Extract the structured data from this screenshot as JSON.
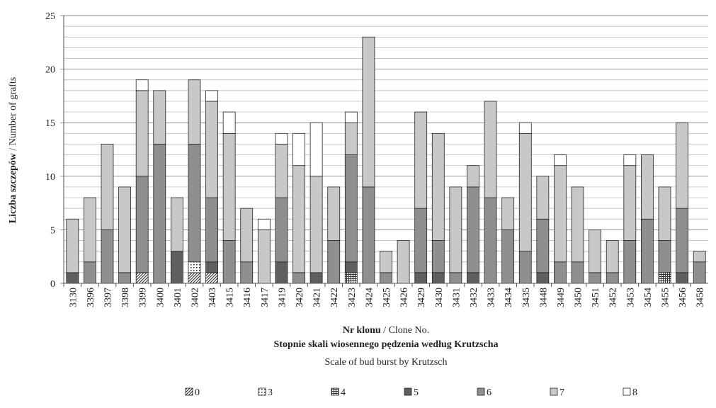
{
  "chart_data": {
    "type": "stacked_bar",
    "y_label_bold": "Liczba szczepów",
    "y_label_rest": "/ Number of grafts",
    "x_label_bold": "Nr klonu",
    "x_label_rest": "/ Clone No.",
    "legend_title_bold": "Stopnie skali wiosennego pędzenia według Krutzscha",
    "legend_title": "Scale of bud burst by Krutzsch",
    "categories": [
      "3130",
      "3396",
      "3397",
      "3398",
      "3399",
      "3400",
      "3401",
      "3402",
      "3403",
      "3415",
      "3416",
      "3417",
      "3419",
      "3420",
      "3421",
      "3422",
      "3423",
      "3424",
      "3425",
      "3426",
      "3429",
      "3430",
      "3431",
      "3432",
      "3433",
      "3434",
      "3435",
      "3448",
      "3449",
      "3450",
      "3451",
      "3452",
      "3453",
      "3454",
      "3455",
      "3456",
      "3458"
    ],
    "series": [
      {
        "name": "0",
        "color": "#ffffff",
        "pattern": "diagonal",
        "values": [
          0,
          0,
          0,
          0,
          1,
          0,
          0,
          1,
          1,
          0,
          0,
          0,
          0,
          0,
          0,
          0,
          0,
          0,
          0,
          0,
          0,
          0,
          0,
          0,
          0,
          0,
          0,
          0,
          0,
          0,
          0,
          0,
          0,
          0,
          0,
          0,
          0
        ]
      },
      {
        "name": "3",
        "color": "#ffffff",
        "pattern": "dots",
        "values": [
          0,
          0,
          0,
          0,
          0,
          0,
          0,
          1,
          0,
          0,
          0,
          0,
          0,
          0,
          0,
          0,
          0,
          0,
          0,
          0,
          0,
          0,
          0,
          0,
          0,
          0,
          0,
          0,
          0,
          0,
          0,
          0,
          0,
          0,
          0,
          0,
          0
        ]
      },
      {
        "name": "4",
        "color": "#ffffff",
        "pattern": "grid",
        "values": [
          0,
          0,
          0,
          0,
          0,
          0,
          0,
          0,
          0,
          0,
          0,
          0,
          0,
          0,
          0,
          0,
          1,
          0,
          0,
          0,
          0,
          0,
          0,
          0,
          0,
          0,
          0,
          0,
          0,
          0,
          0,
          0,
          0,
          0,
          1,
          0,
          0
        ]
      },
      {
        "name": "5",
        "color": "#5f5f5f",
        "pattern": "solid",
        "values": [
          1,
          0,
          0,
          0,
          0,
          0,
          3,
          0,
          1,
          0,
          0,
          0,
          2,
          0,
          1,
          0,
          1,
          0,
          0,
          0,
          1,
          1,
          0,
          1,
          0,
          0,
          0,
          1,
          0,
          0,
          0,
          0,
          0,
          0,
          0,
          1,
          0
        ]
      },
      {
        "name": "6",
        "color": "#8f8f8f",
        "pattern": "solid",
        "values": [
          0,
          2,
          5,
          1,
          9,
          13,
          0,
          11,
          6,
          4,
          2,
          0,
          6,
          1,
          0,
          4,
          10,
          9,
          1,
          0,
          6,
          3,
          1,
          8,
          8,
          5,
          3,
          5,
          2,
          2,
          1,
          1,
          4,
          6,
          3,
          6,
          2
        ]
      },
      {
        "name": "7",
        "color": "#c8c8c8",
        "pattern": "solid",
        "values": [
          5,
          6,
          8,
          8,
          8,
          5,
          5,
          6,
          9,
          10,
          5,
          5,
          5,
          10,
          9,
          5,
          3,
          14,
          2,
          4,
          9,
          10,
          8,
          2,
          9,
          3,
          11,
          4,
          9,
          7,
          4,
          3,
          7,
          6,
          5,
          8,
          1
        ]
      },
      {
        "name": "8",
        "color": "#ffffff",
        "pattern": "solid",
        "values": [
          0,
          0,
          0,
          0,
          1,
          0,
          0,
          0,
          1,
          2,
          0,
          1,
          1,
          3,
          5,
          0,
          1,
          0,
          0,
          0,
          0,
          0,
          0,
          0,
          0,
          0,
          1,
          0,
          1,
          0,
          0,
          0,
          1,
          0,
          0,
          0,
          0
        ]
      }
    ],
    "ylim": [
      0,
      25
    ],
    "yticks": [
      0,
      5,
      10,
      15,
      20,
      25
    ],
    "yminor": [
      1,
      2,
      3,
      4,
      6,
      7,
      8,
      9,
      11,
      12,
      13,
      14,
      16,
      17,
      18,
      19,
      21,
      22,
      23,
      24
    ],
    "grid": true
  }
}
